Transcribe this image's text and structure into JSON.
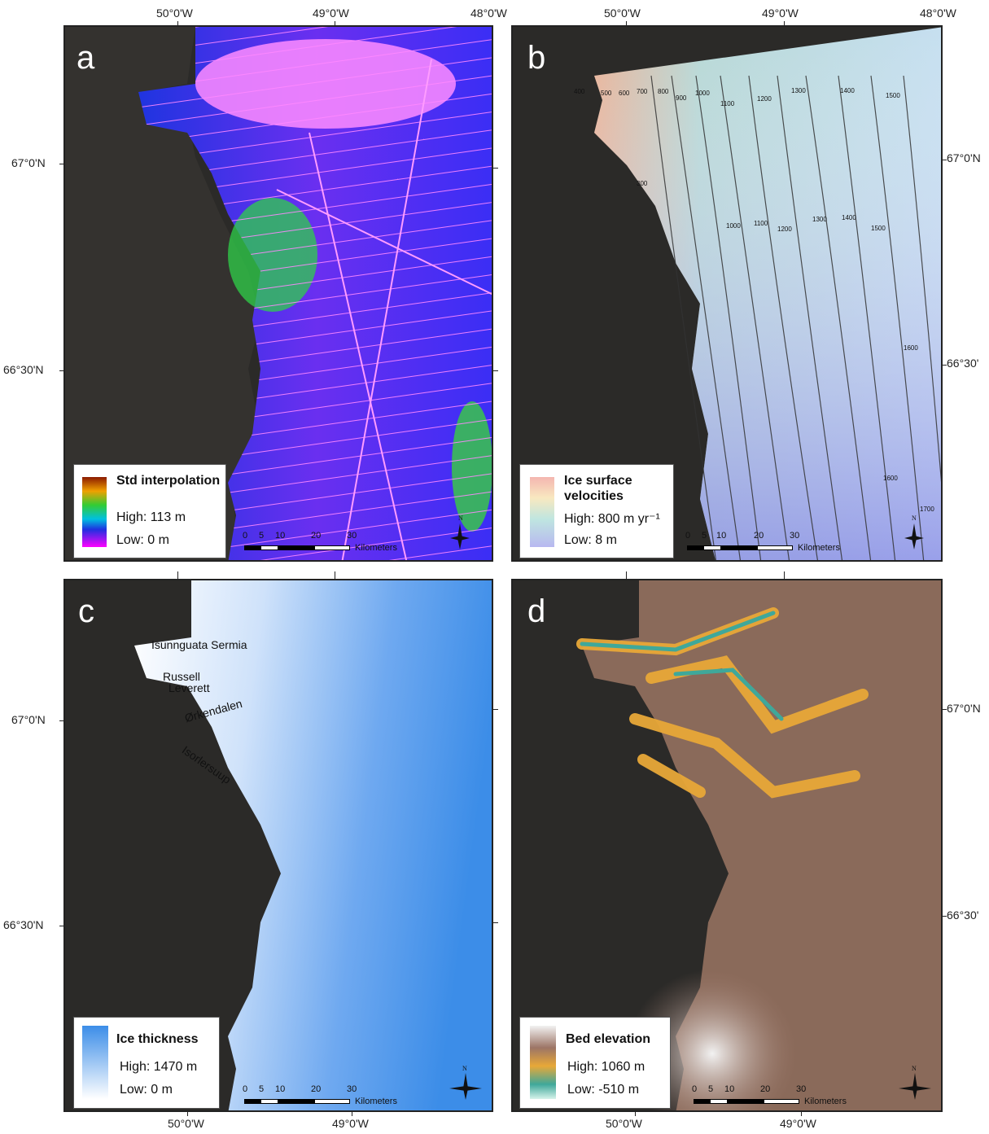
{
  "lon_labels": [
    "50°0'W",
    "49°0'W",
    "48°0'W"
  ],
  "lat_labels": {
    "n67": "67°0'N",
    "n66_30": "66°30'N",
    "short66_30": "66°30'"
  },
  "panels": {
    "a": {
      "letter": "a",
      "legend": {
        "title": "Std interpolation",
        "high": "High: 113 m",
        "low": "Low:  0 m"
      }
    },
    "b": {
      "letter": "b",
      "legend": {
        "title": "Ice surface velocities",
        "high": "High: 800 m yr⁻¹",
        "low": "Low:  8 m"
      },
      "contours": [
        "300",
        "400",
        "500",
        "600",
        "700",
        "800",
        "900",
        "1000",
        "1100",
        "1200",
        "1300",
        "1400",
        "1500",
        "1600",
        "1700"
      ]
    },
    "c": {
      "letter": "c",
      "legend": {
        "title": "Ice thickness",
        "high": "High: 1470 m",
        "low": "Low:  0 m"
      },
      "places": [
        "Isunnguata Sermia",
        "Russell",
        "Leverett",
        "Ørkendalen",
        "Isorlersuup"
      ]
    },
    "d": {
      "letter": "d",
      "legend": {
        "title": "Bed elevation",
        "high": "High: 1060 m",
        "low": "Low:  -510 m"
      }
    }
  },
  "scalebar": {
    "ticks": [
      "0",
      "5",
      "10",
      "20",
      "30"
    ],
    "unit": "Kilometers"
  },
  "north_label": "N",
  "colors": {
    "land": "#2b2a28",
    "std_high": "#8b1a00",
    "std_mid": "#33cc33",
    "std_low": "#ff00ff",
    "vel_high": "#f4b6b0",
    "vel_mid": "#bfe6e0",
    "vel_low": "#b8b8f0",
    "thick_high": "#3c8de8",
    "thick_low": "#ffffff",
    "bed_high": "#8a6a5a",
    "bed_mid": "#e8b040",
    "bed_low": "#d6f2ea"
  }
}
